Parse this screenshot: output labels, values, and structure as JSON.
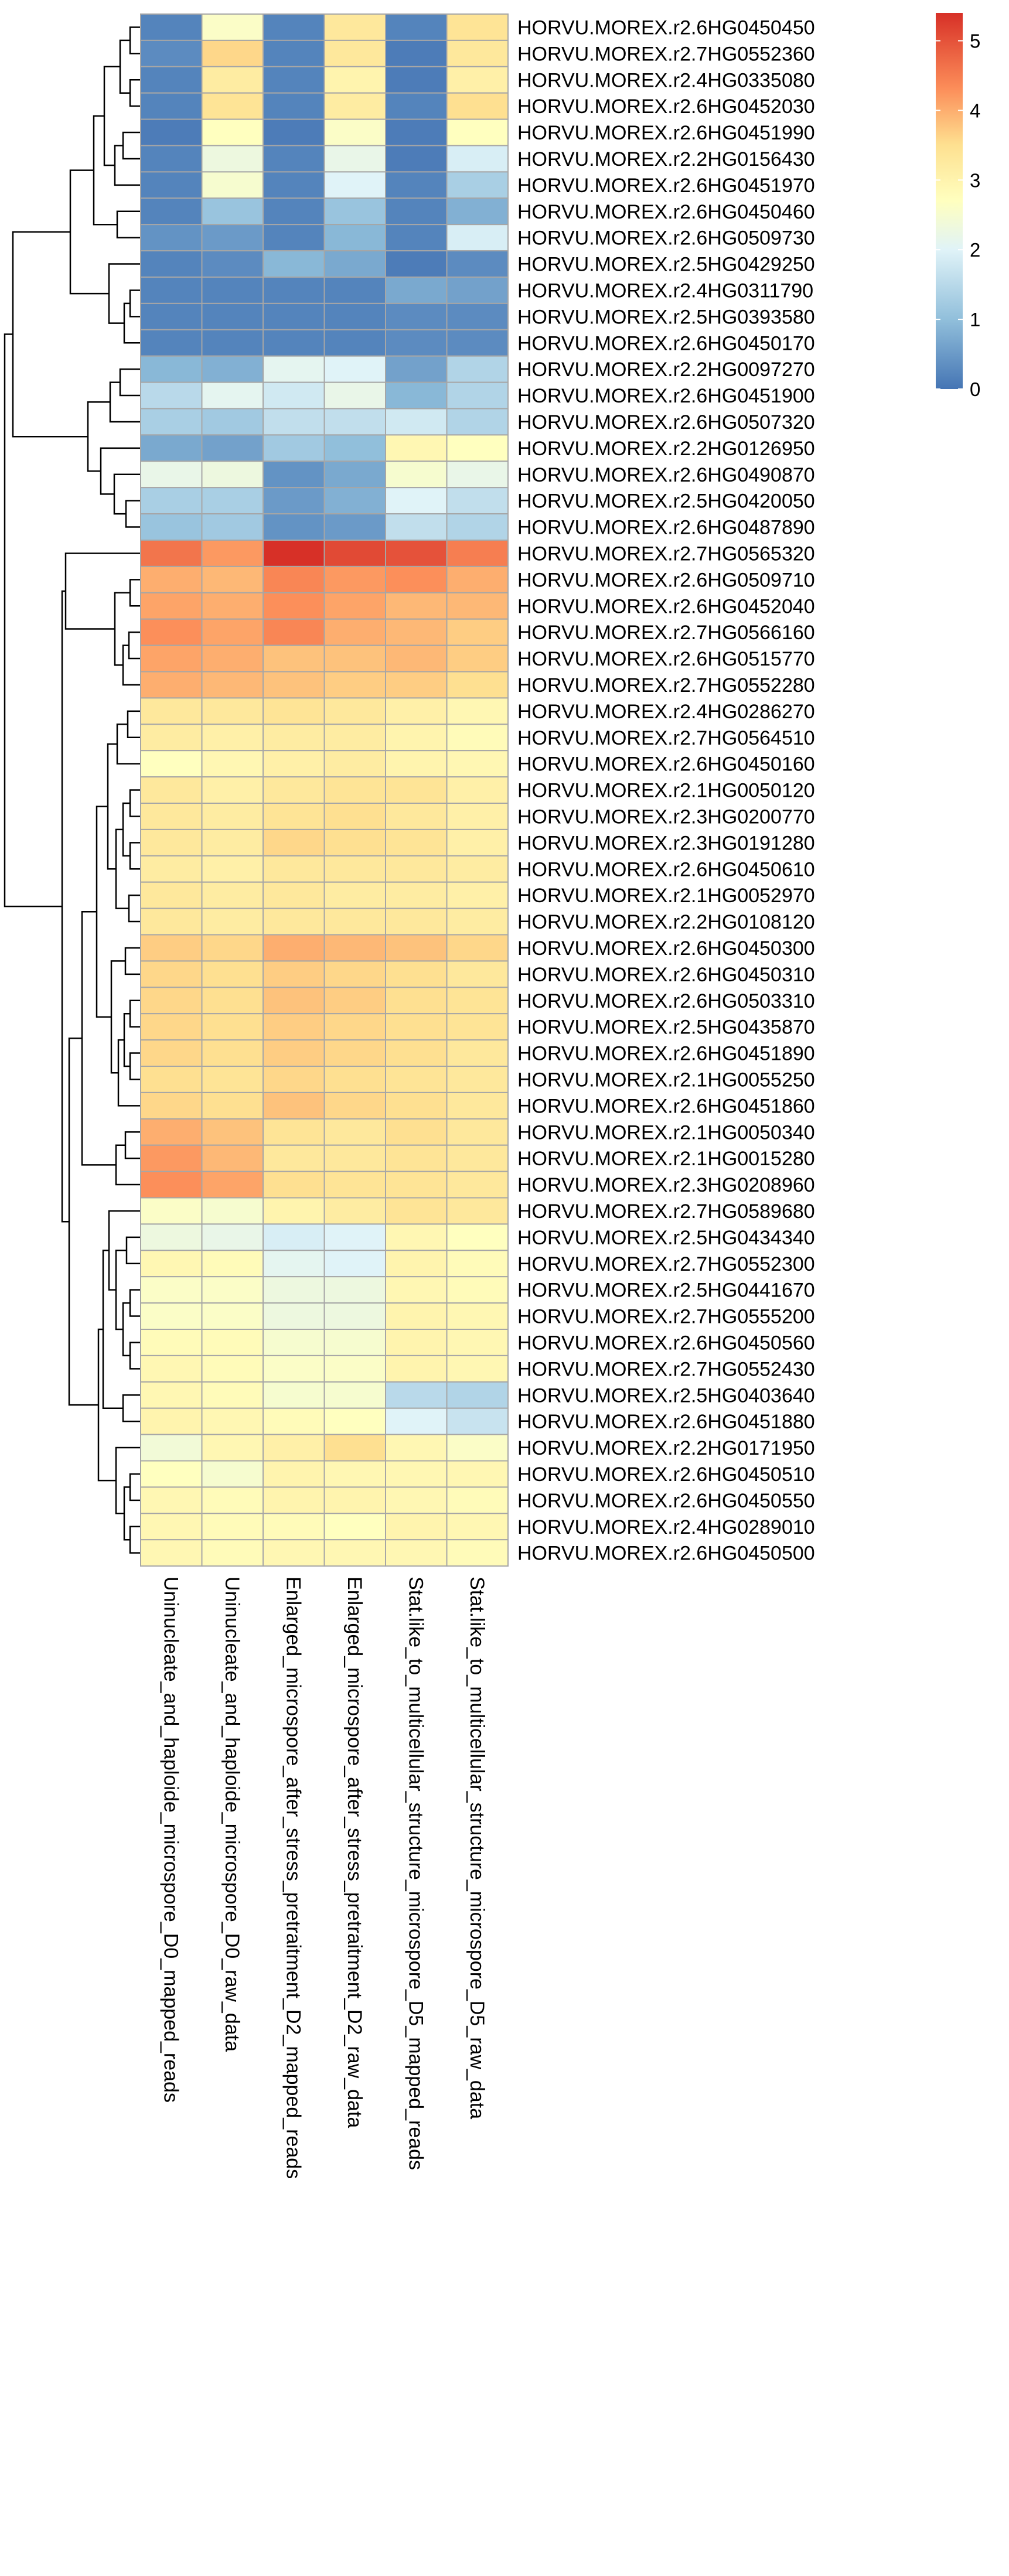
{
  "chart_data": {
    "type": "heatmap",
    "title": "",
    "xlabel": "",
    "ylabel": "",
    "legend": {
      "placement": "top-right",
      "min": 0,
      "max": 5.4,
      "ticks": [
        "0",
        "1",
        "2",
        "3",
        "4",
        "5"
      ]
    },
    "colors": {
      "low": "#4575b4",
      "mid": "#ffffbf",
      "high": "#d73027",
      "cell_border": "#a6a6a6",
      "tree": "#000000"
    },
    "columns": [
      "Uninucleate_and_haploide_microspore_D0_mapped_reads",
      "Uninucleate_and_haploide_microspore_D0_raw_data",
      "Enlarged_microspore_after_stress_pretraitment_D2_mapped_reads",
      "Enlarged_microspore_after_stress_pretraitment_D2_raw_data",
      "Stat.like_to_multicellular_structure_microspore_D5_mapped_reads",
      "Stat.like_to_multicellular_structure_microspore_D5_raw_data"
    ],
    "rows": [
      {
        "gene": "HORVU.MOREX.r2.6HG0450450",
        "values": [
          0.2,
          2.6,
          0.2,
          3.3,
          0.2,
          3.4
        ]
      },
      {
        "gene": "HORVU.MOREX.r2.7HG0552360",
        "values": [
          0.3,
          3.6,
          0.2,
          3.3,
          0.1,
          3.3
        ]
      },
      {
        "gene": "HORVU.MOREX.r2.4HG0335080",
        "values": [
          0.2,
          3.2,
          0.2,
          3.0,
          0.1,
          3.1
        ]
      },
      {
        "gene": "HORVU.MOREX.r2.6HG0452030",
        "values": [
          0.2,
          3.4,
          0.2,
          3.2,
          0.2,
          3.5
        ]
      },
      {
        "gene": "HORVU.MOREX.r2.6HG0451990",
        "values": [
          0.1,
          2.7,
          0.1,
          2.6,
          0.1,
          2.7
        ]
      },
      {
        "gene": "HORVU.MOREX.r2.2HG0156430",
        "values": [
          0.2,
          2.3,
          0.2,
          2.2,
          0.1,
          1.9
        ]
      },
      {
        "gene": "HORVU.MOREX.r2.6HG0451970",
        "values": [
          0.2,
          2.5,
          0.2,
          2.0,
          0.2,
          1.3
        ]
      },
      {
        "gene": "HORVU.MOREX.r2.6HG0450460",
        "values": [
          0.2,
          1.1,
          0.2,
          1.1,
          0.2,
          0.8
        ]
      },
      {
        "gene": "HORVU.MOREX.r2.6HG0509730",
        "values": [
          0.4,
          0.5,
          0.2,
          0.9,
          0.2,
          1.9
        ]
      },
      {
        "gene": "HORVU.MOREX.r2.5HG0429250",
        "values": [
          0.2,
          0.3,
          0.9,
          0.7,
          0.1,
          0.3
        ]
      },
      {
        "gene": "HORVU.MOREX.r2.4HG0311790",
        "values": [
          0.2,
          0.2,
          0.2,
          0.2,
          0.7,
          0.6
        ]
      },
      {
        "gene": "HORVU.MOREX.r2.5HG0393580",
        "values": [
          0.2,
          0.2,
          0.2,
          0.2,
          0.3,
          0.3
        ]
      },
      {
        "gene": "HORVU.MOREX.r2.6HG0450170",
        "values": [
          0.2,
          0.2,
          0.2,
          0.2,
          0.3,
          0.3
        ]
      },
      {
        "gene": "HORVU.MOREX.r2.2HG0097270",
        "values": [
          0.9,
          0.8,
          2.1,
          2.0,
          0.6,
          1.4
        ]
      },
      {
        "gene": "HORVU.MOREX.r2.6HG0451900",
        "values": [
          1.5,
          2.1,
          1.8,
          2.2,
          0.9,
          1.4
        ]
      },
      {
        "gene": "HORVU.MOREX.r2.6HG0507320",
        "values": [
          1.3,
          1.2,
          1.6,
          1.6,
          1.8,
          1.4
        ]
      },
      {
        "gene": "HORVU.MOREX.r2.2HG0126950",
        "values": [
          0.7,
          0.6,
          1.2,
          1.0,
          2.9,
          2.7
        ]
      },
      {
        "gene": "HORVU.MOREX.r2.6HG0490870",
        "values": [
          2.2,
          2.3,
          0.4,
          0.7,
          2.5,
          2.2
        ]
      },
      {
        "gene": "HORVU.MOREX.r2.5HG0420050",
        "values": [
          1.3,
          1.3,
          0.5,
          0.8,
          2.0,
          1.6
        ]
      },
      {
        "gene": "HORVU.MOREX.r2.6HG0487890",
        "values": [
          1.1,
          1.2,
          0.4,
          0.5,
          1.6,
          1.4
        ]
      },
      {
        "gene": "HORVU.MOREX.r2.7HG0565320",
        "values": [
          4.6,
          4.2,
          5.4,
          5.1,
          5.0,
          4.5
        ]
      },
      {
        "gene": "HORVU.MOREX.r2.6HG0509710",
        "values": [
          4.0,
          3.9,
          4.4,
          4.2,
          4.3,
          4.0
        ]
      },
      {
        "gene": "HORVU.MOREX.r2.6HG0452040",
        "values": [
          4.1,
          4.0,
          4.3,
          4.1,
          3.9,
          3.9
        ]
      },
      {
        "gene": "HORVU.MOREX.r2.7HG0566160",
        "values": [
          4.3,
          4.1,
          4.4,
          4.0,
          3.9,
          3.7
        ]
      },
      {
        "gene": "HORVU.MOREX.r2.6HG0515770",
        "values": [
          4.1,
          4.0,
          3.8,
          3.8,
          3.9,
          3.7
        ]
      },
      {
        "gene": "HORVU.MOREX.r2.7HG0552280",
        "values": [
          4.0,
          3.9,
          3.8,
          3.7,
          3.7,
          3.5
        ]
      },
      {
        "gene": "HORVU.MOREX.r2.4HG0286270",
        "values": [
          3.3,
          3.3,
          3.4,
          3.3,
          3.1,
          2.9
        ]
      },
      {
        "gene": "HORVU.MOREX.r2.7HG0564510",
        "values": [
          3.2,
          3.1,
          3.2,
          3.2,
          3.0,
          2.8
        ]
      },
      {
        "gene": "HORVU.MOREX.r2.6HG0450160",
        "values": [
          2.7,
          2.9,
          3.1,
          3.2,
          3.0,
          2.9
        ]
      },
      {
        "gene": "HORVU.MOREX.r2.1HG0050120",
        "values": [
          3.3,
          3.1,
          3.3,
          3.4,
          3.4,
          3.1
        ]
      },
      {
        "gene": "HORVU.MOREX.r2.3HG0200770",
        "values": [
          3.3,
          3.2,
          3.4,
          3.5,
          3.3,
          3.1
        ]
      },
      {
        "gene": "HORVU.MOREX.r2.3HG0191280",
        "values": [
          3.3,
          3.2,
          3.6,
          3.5,
          3.4,
          3.1
        ]
      },
      {
        "gene": "HORVU.MOREX.r2.6HG0450610",
        "values": [
          3.2,
          3.1,
          3.3,
          3.3,
          3.3,
          3.2
        ]
      },
      {
        "gene": "HORVU.MOREX.r2.1HG0052970",
        "values": [
          3.3,
          3.2,
          3.3,
          3.2,
          3.2,
          3.1
        ]
      },
      {
        "gene": "HORVU.MOREX.r2.2HG0108120",
        "values": [
          3.3,
          3.2,
          3.3,
          3.3,
          3.3,
          3.2
        ]
      },
      {
        "gene": "HORVU.MOREX.r2.6HG0450300",
        "values": [
          3.7,
          3.6,
          4.0,
          3.9,
          3.8,
          3.6
        ]
      },
      {
        "gene": "HORVU.MOREX.r2.6HG0450310",
        "values": [
          3.6,
          3.5,
          3.7,
          3.6,
          3.5,
          3.3
        ]
      },
      {
        "gene": "HORVU.MOREX.r2.6HG0503310",
        "values": [
          3.6,
          3.5,
          3.8,
          3.7,
          3.5,
          3.4
        ]
      },
      {
        "gene": "HORVU.MOREX.r2.5HG0435870",
        "values": [
          3.6,
          3.5,
          3.7,
          3.6,
          3.5,
          3.4
        ]
      },
      {
        "gene": "HORVU.MOREX.r2.6HG0451890",
        "values": [
          3.6,
          3.5,
          3.7,
          3.6,
          3.5,
          3.3
        ]
      },
      {
        "gene": "HORVU.MOREX.r2.1HG0055250",
        "values": [
          3.5,
          3.4,
          3.6,
          3.5,
          3.4,
          3.3
        ]
      },
      {
        "gene": "HORVU.MOREX.r2.6HG0451860",
        "values": [
          3.6,
          3.5,
          3.8,
          3.6,
          3.5,
          3.3
        ]
      },
      {
        "gene": "HORVU.MOREX.r2.1HG0050340",
        "values": [
          4.0,
          3.8,
          3.4,
          3.3,
          3.5,
          3.3
        ]
      },
      {
        "gene": "HORVU.MOREX.r2.1HG0015280",
        "values": [
          4.2,
          3.9,
          3.3,
          3.3,
          3.4,
          3.3
        ]
      },
      {
        "gene": "HORVU.MOREX.r2.3HG0208960",
        "values": [
          4.3,
          4.1,
          3.5,
          3.4,
          3.4,
          3.3
        ]
      },
      {
        "gene": "HORVU.MOREX.r2.7HG0589680",
        "values": [
          2.6,
          2.5,
          3.0,
          3.2,
          3.4,
          3.3
        ]
      },
      {
        "gene": "HORVU.MOREX.r2.5HG0434340",
        "values": [
          2.3,
          2.2,
          1.9,
          2.0,
          2.9,
          2.7
        ]
      },
      {
        "gene": "HORVU.MOREX.r2.7HG0552300",
        "values": [
          2.9,
          2.8,
          2.1,
          2.0,
          3.0,
          2.8
        ]
      },
      {
        "gene": "HORVU.MOREX.r2.5HG0441670",
        "values": [
          2.6,
          2.6,
          2.3,
          2.3,
          2.9,
          2.8
        ]
      },
      {
        "gene": "HORVU.MOREX.r2.7HG0555200",
        "values": [
          2.6,
          2.6,
          2.3,
          2.3,
          3.0,
          2.9
        ]
      },
      {
        "gene": "HORVU.MOREX.r2.6HG0450560",
        "values": [
          2.8,
          2.8,
          2.5,
          2.5,
          3.0,
          2.9
        ]
      },
      {
        "gene": "HORVU.MOREX.r2.7HG0552430",
        "values": [
          2.9,
          2.8,
          2.6,
          2.6,
          3.0,
          2.9
        ]
      },
      {
        "gene": "HORVU.MOREX.r2.5HG0403640",
        "values": [
          2.9,
          2.8,
          2.5,
          2.5,
          1.5,
          1.4
        ]
      },
      {
        "gene": "HORVU.MOREX.r2.6HG0451880",
        "values": [
          3.0,
          2.9,
          2.8,
          2.7,
          2.0,
          1.7
        ]
      },
      {
        "gene": "HORVU.MOREX.r2.2HG0171950",
        "values": [
          2.4,
          2.9,
          3.1,
          3.5,
          2.9,
          2.6
        ]
      },
      {
        "gene": "HORVU.MOREX.r2.6HG0450510",
        "values": [
          2.7,
          2.5,
          3.0,
          2.9,
          2.9,
          2.9
        ]
      },
      {
        "gene": "HORVU.MOREX.r2.6HG0450550",
        "values": [
          2.9,
          2.8,
          3.0,
          3.0,
          2.9,
          2.8
        ]
      },
      {
        "gene": "HORVU.MOREX.r2.4HG0289010",
        "values": [
          2.9,
          2.8,
          2.8,
          2.7,
          3.0,
          2.9
        ]
      },
      {
        "gene": "HORVU.MOREX.r2.6HG0450500",
        "values": [
          2.9,
          2.8,
          2.9,
          2.9,
          2.9,
          2.8
        ]
      }
    ]
  }
}
